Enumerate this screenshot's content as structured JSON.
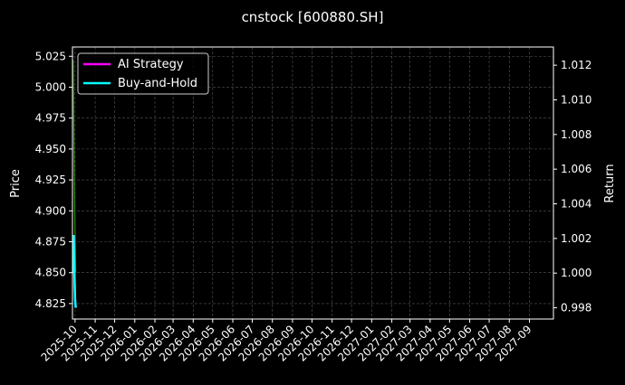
{
  "chart_data": {
    "type": "line",
    "title": "cnstock [600880.SH]",
    "ylabel_left": "Price",
    "ylabel_right": "Return",
    "xlabel": "",
    "ylim_left": [
      4.8125,
      5.0325
    ],
    "ylim_right": [
      0.99735,
      1.01305
    ],
    "xlim": [
      "2025-09-27",
      "2027-10-08"
    ],
    "grid": true,
    "legend_placement": "top-left",
    "x_ticks": [
      "2025-10",
      "2025-11",
      "2025-12",
      "2026-01",
      "2026-02",
      "2026-03",
      "2026-04",
      "2026-05",
      "2026-06",
      "2026-07",
      "2026-08",
      "2026-09",
      "2026-10",
      "2026-11",
      "2026-12",
      "2027-01",
      "2027-02",
      "2027-03",
      "2027-04",
      "2027-05",
      "2027-06",
      "2027-07",
      "2027-08",
      "2027-09"
    ],
    "y_ticks_left": [
      "4.825",
      "4.850",
      "4.875",
      "4.900",
      "4.925",
      "4.950",
      "4.975",
      "5.000",
      "5.025"
    ],
    "y_ticks_right": [
      "0.998",
      "1.000",
      "1.002",
      "1.004",
      "1.006",
      "1.008",
      "1.010",
      "1.012"
    ],
    "x": [
      "2025-09-28",
      "2025-09-29",
      "2025-09-30",
      "2025-10-01",
      "2025-10-02"
    ],
    "price_series": {
      "color": "#2e8b00",
      "axis": "left",
      "values": [
        5.022,
        4.97,
        4.92,
        4.88,
        4.85
      ]
    },
    "series": [
      {
        "name": "AI Strategy",
        "color": "#ff00ff",
        "axis": "right",
        "values": [
          1.0,
          1.0022,
          1.0,
          0.9985,
          0.998
        ]
      },
      {
        "name": "Buy-and-Hold",
        "color": "#00ffff",
        "axis": "right",
        "values": [
          1.0,
          1.0022,
          1.0,
          0.9985,
          0.998
        ]
      }
    ]
  }
}
